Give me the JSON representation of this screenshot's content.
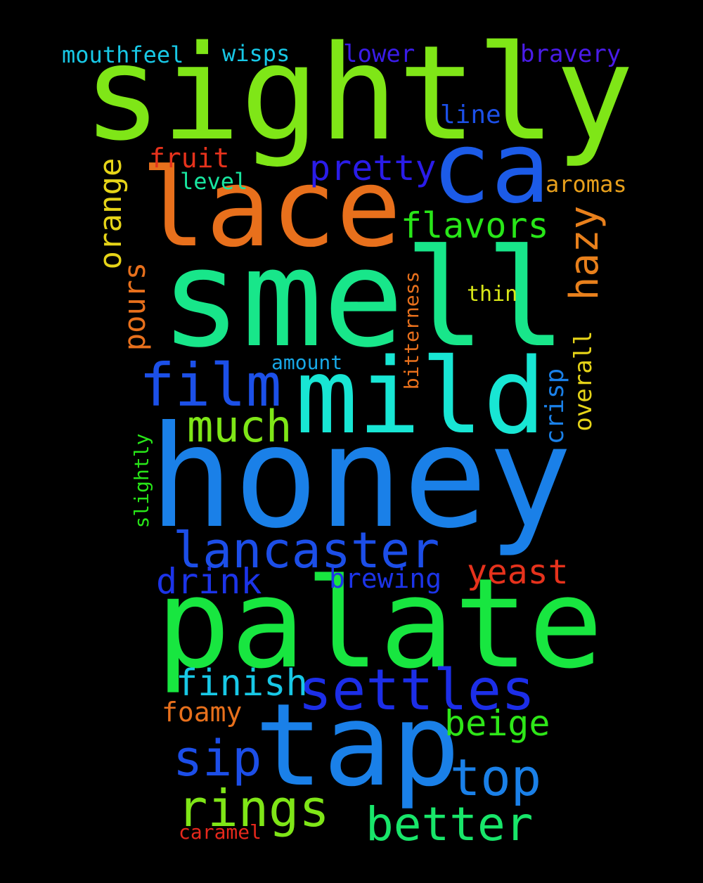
{
  "words": {
    "sightly": {
      "text": "sightly",
      "color": "#7fe617"
    },
    "ca": {
      "text": "ca",
      "color": "#1c5be8"
    },
    "lace": {
      "text": "lace",
      "color": "#e8701c"
    },
    "smell": {
      "text": "smell",
      "color": "#18e68a"
    },
    "mild": {
      "text": "mild",
      "color": "#18e6d4"
    },
    "honey": {
      "text": "honey",
      "color": "#1a80e8"
    },
    "palate": {
      "text": "palate",
      "color": "#18e640"
    },
    "tap": {
      "text": "tap",
      "color": "#1a80e8"
    },
    "film": {
      "text": "film",
      "color": "#1c50e8"
    },
    "lancaster": {
      "text": "lancaster",
      "color": "#1c4ee8"
    },
    "settles": {
      "text": "settles",
      "color": "#1c2ee8"
    },
    "rings": {
      "text": "rings",
      "color": "#7fe617"
    },
    "better": {
      "text": "better",
      "color": "#18e66a"
    },
    "top": {
      "text": "top",
      "color": "#1a80e8"
    },
    "sip": {
      "text": "sip",
      "color": "#1c4ee8"
    },
    "much": {
      "text": "much",
      "color": "#7fe617"
    },
    "pretty": {
      "text": "pretty",
      "color": "#2a1ce8"
    },
    "flavors": {
      "text": "flavors",
      "color": "#28e618"
    },
    "finish": {
      "text": "finish",
      "color": "#18c8e6"
    },
    "beige": {
      "text": "beige",
      "color": "#2ee618"
    },
    "drink": {
      "text": "drink",
      "color": "#1c34e8"
    },
    "yeast": {
      "text": "yeast",
      "color": "#e6321c"
    },
    "brewing": {
      "text": "brewing",
      "color": "#1c34e8"
    },
    "fruit": {
      "text": "fruit",
      "color": "#e6321c"
    },
    "foamy": {
      "text": "foamy",
      "color": "#e8701c"
    },
    "bravery": {
      "text": "bravery",
      "color": "#4a1ce8"
    },
    "lower": {
      "text": "lower",
      "color": "#3a1ce8"
    },
    "line": {
      "text": "line",
      "color": "#1c50e8"
    },
    "mouthfeel": {
      "text": "mouthfeel",
      "color": "#18c8e6"
    },
    "wisps": {
      "text": "wisps",
      "color": "#18c8e6"
    },
    "aromas": {
      "text": "aromas",
      "color": "#e8a01c"
    },
    "level": {
      "text": "level",
      "color": "#18e6a0"
    },
    "thin": {
      "text": "thin",
      "color": "#d8e618"
    },
    "amount": {
      "text": "amount",
      "color": "#18a8e6"
    },
    "caramel": {
      "text": "caramel",
      "color": "#e6281c"
    },
    "orange": {
      "text": "orange",
      "color": "#e6d418"
    },
    "hazy": {
      "text": "hazy",
      "color": "#e8801c"
    },
    "pours": {
      "text": "pours",
      "color": "#e8701c"
    },
    "bitterness": {
      "text": "bitterness",
      "color": "#e8701c"
    },
    "overall": {
      "text": "overall",
      "color": "#e6d418"
    },
    "crisp": {
      "text": "crisp",
      "color": "#1a80e8"
    },
    "slightly": {
      "text": "slightly",
      "color": "#28e618"
    }
  }
}
